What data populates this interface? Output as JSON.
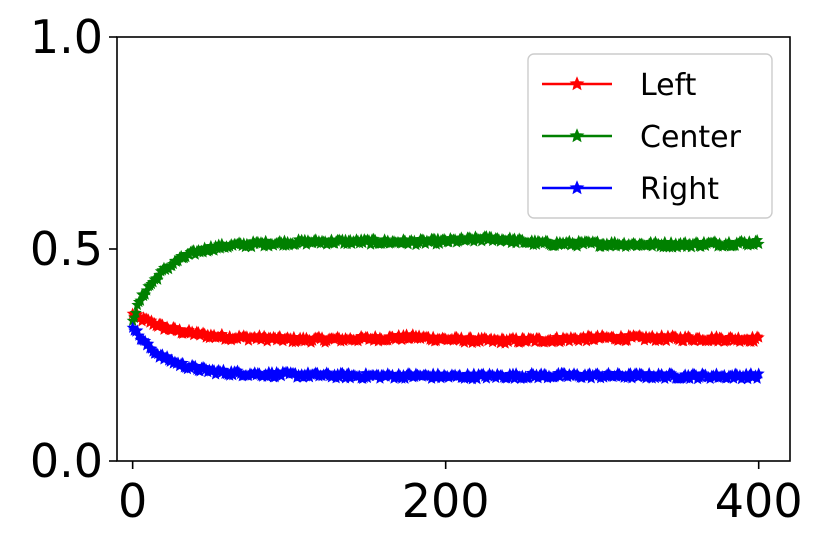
{
  "chart_data": {
    "type": "line",
    "title": "",
    "xlabel": "",
    "ylabel": "",
    "xlim": [
      -10,
      420
    ],
    "ylim": [
      0.0,
      1.0
    ],
    "x_ticks": [
      0,
      200,
      400
    ],
    "x_tick_labels": [
      "0",
      "200",
      "400"
    ],
    "y_ticks": [
      0.0,
      0.5,
      1.0
    ],
    "y_tick_labels": [
      "0.0",
      "0.5",
      "1.0"
    ],
    "grid": false,
    "legend_position": "top-right",
    "marker": "star",
    "series": [
      {
        "name": "Left",
        "color": "#ff0000",
        "x": [
          0,
          5,
          10,
          15,
          20,
          30,
          40,
          50,
          60,
          80,
          100,
          120,
          150,
          180,
          200,
          230,
          260,
          300,
          350,
          400
        ],
        "y": [
          0.345,
          0.335,
          0.33,
          0.322,
          0.315,
          0.306,
          0.3,
          0.295,
          0.292,
          0.29,
          0.286,
          0.286,
          0.288,
          0.292,
          0.287,
          0.283,
          0.285,
          0.29,
          0.289,
          0.287
        ]
      },
      {
        "name": "Center",
        "color": "#008000",
        "x": [
          0,
          5,
          10,
          15,
          20,
          30,
          40,
          50,
          60,
          80,
          100,
          120,
          150,
          180,
          200,
          230,
          260,
          300,
          350,
          400
        ],
        "y": [
          0.335,
          0.38,
          0.41,
          0.43,
          0.45,
          0.475,
          0.492,
          0.502,
          0.507,
          0.512,
          0.515,
          0.517,
          0.517,
          0.516,
          0.518,
          0.525,
          0.513,
          0.512,
          0.51,
          0.515
        ]
      },
      {
        "name": "Right",
        "color": "#0000ff",
        "x": [
          0,
          5,
          10,
          15,
          20,
          30,
          40,
          50,
          60,
          80,
          100,
          120,
          150,
          180,
          200,
          230,
          260,
          300,
          350,
          400
        ],
        "y": [
          0.32,
          0.29,
          0.27,
          0.255,
          0.243,
          0.228,
          0.218,
          0.212,
          0.208,
          0.205,
          0.203,
          0.202,
          0.2,
          0.201,
          0.199,
          0.2,
          0.201,
          0.201,
          0.2,
          0.2
        ]
      }
    ]
  }
}
